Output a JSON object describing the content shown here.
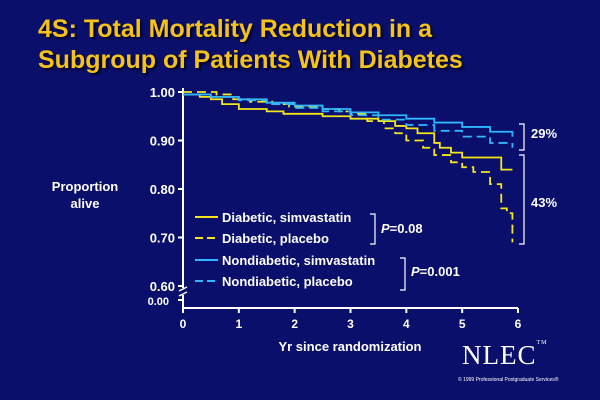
{
  "title_line1": "4S: Total Mortality Reduction in a",
  "title_line2": "Subgroup of Patients With Diabetes",
  "colors": {
    "background": "#0a0f6b",
    "title": "#f5c21a",
    "diabetic": "#f5e61a",
    "nondiabetic": "#2fb7ff",
    "axis": "#ffffff"
  },
  "chart_data": {
    "type": "line",
    "title": "4S: Total Mortality Reduction in a Subgroup of Patients With Diabetes",
    "xlabel": "Yr since randomization",
    "ylabel": "Proportion alive",
    "xlim": [
      0,
      6
    ],
    "ylim": [
      0.6,
      1.0
    ],
    "x_ticks": [
      "0",
      "1",
      "2",
      "3",
      "4",
      "5",
      "6"
    ],
    "y_ticks": [
      "1.00",
      "0.90",
      "0.80",
      "0.70",
      "0.60"
    ],
    "y_break_label": "0.00",
    "series": [
      {
        "name": "Diabetic, simvastatin",
        "style": "solid",
        "color": "#f5e61a",
        "x": [
          0,
          0.3,
          0.5,
          0.7,
          1.0,
          1.3,
          1.5,
          1.8,
          2.0,
          2.5,
          2.9,
          3.0,
          3.2,
          3.5,
          3.8,
          4.0,
          4.2,
          4.5,
          4.6,
          4.8,
          5.0,
          5.5,
          5.7,
          5.9
        ],
        "y": [
          0.995,
          0.99,
          0.985,
          0.975,
          0.965,
          0.965,
          0.96,
          0.955,
          0.955,
          0.95,
          0.95,
          0.945,
          0.945,
          0.94,
          0.93,
          0.925,
          0.915,
          0.895,
          0.885,
          0.875,
          0.865,
          0.865,
          0.84,
          0.84
        ]
      },
      {
        "name": "Diabetic, placebo",
        "style": "dashed",
        "color": "#f5e61a",
        "x": [
          0,
          0.3,
          0.6,
          0.9,
          1.2,
          1.6,
          1.9,
          2.1,
          2.5,
          2.8,
          3.0,
          3.3,
          3.6,
          3.8,
          4.0,
          4.3,
          4.5,
          4.8,
          5.0,
          5.2,
          5.5,
          5.7,
          5.8,
          5.9
        ],
        "y": [
          1.0,
          1.0,
          0.995,
          0.985,
          0.98,
          0.975,
          0.97,
          0.97,
          0.965,
          0.96,
          0.955,
          0.94,
          0.925,
          0.915,
          0.9,
          0.885,
          0.87,
          0.855,
          0.845,
          0.835,
          0.81,
          0.76,
          0.75,
          0.69
        ]
      },
      {
        "name": "Nondiabetic, simvastatin",
        "style": "solid",
        "color": "#2fb7ff",
        "x": [
          0,
          0.5,
          1.0,
          1.5,
          2.0,
          2.5,
          3.0,
          3.5,
          4.0,
          4.5,
          5.0,
          5.5,
          5.9
        ],
        "y": [
          0.995,
          0.99,
          0.985,
          0.978,
          0.972,
          0.965,
          0.958,
          0.952,
          0.945,
          0.937,
          0.928,
          0.918,
          0.908
        ]
      },
      {
        "name": "Nondiabetic, placebo",
        "style": "dashed",
        "color": "#2fb7ff",
        "x": [
          0,
          0.5,
          1.0,
          1.5,
          2.0,
          2.5,
          3.0,
          3.5,
          4.0,
          4.5,
          5.0,
          5.5,
          5.9
        ],
        "y": [
          0.995,
          0.99,
          0.983,
          0.975,
          0.967,
          0.96,
          0.952,
          0.943,
          0.932,
          0.92,
          0.908,
          0.895,
          0.885
        ]
      }
    ],
    "annotations": [
      {
        "text": "29%",
        "applies_to": "Nondiabetic"
      },
      {
        "text": "43%",
        "applies_to": "Diabetic"
      },
      {
        "p_label": "P",
        "value": "=0.08",
        "applies_to": "Diabetic"
      },
      {
        "p_label": "P",
        "value": "=0.001",
        "applies_to": "Nondiabetic"
      }
    ]
  },
  "logo": {
    "text": "NLEC",
    "tm": "TM",
    "copyright": "© 1999 Professional Postgraduate Services®"
  }
}
